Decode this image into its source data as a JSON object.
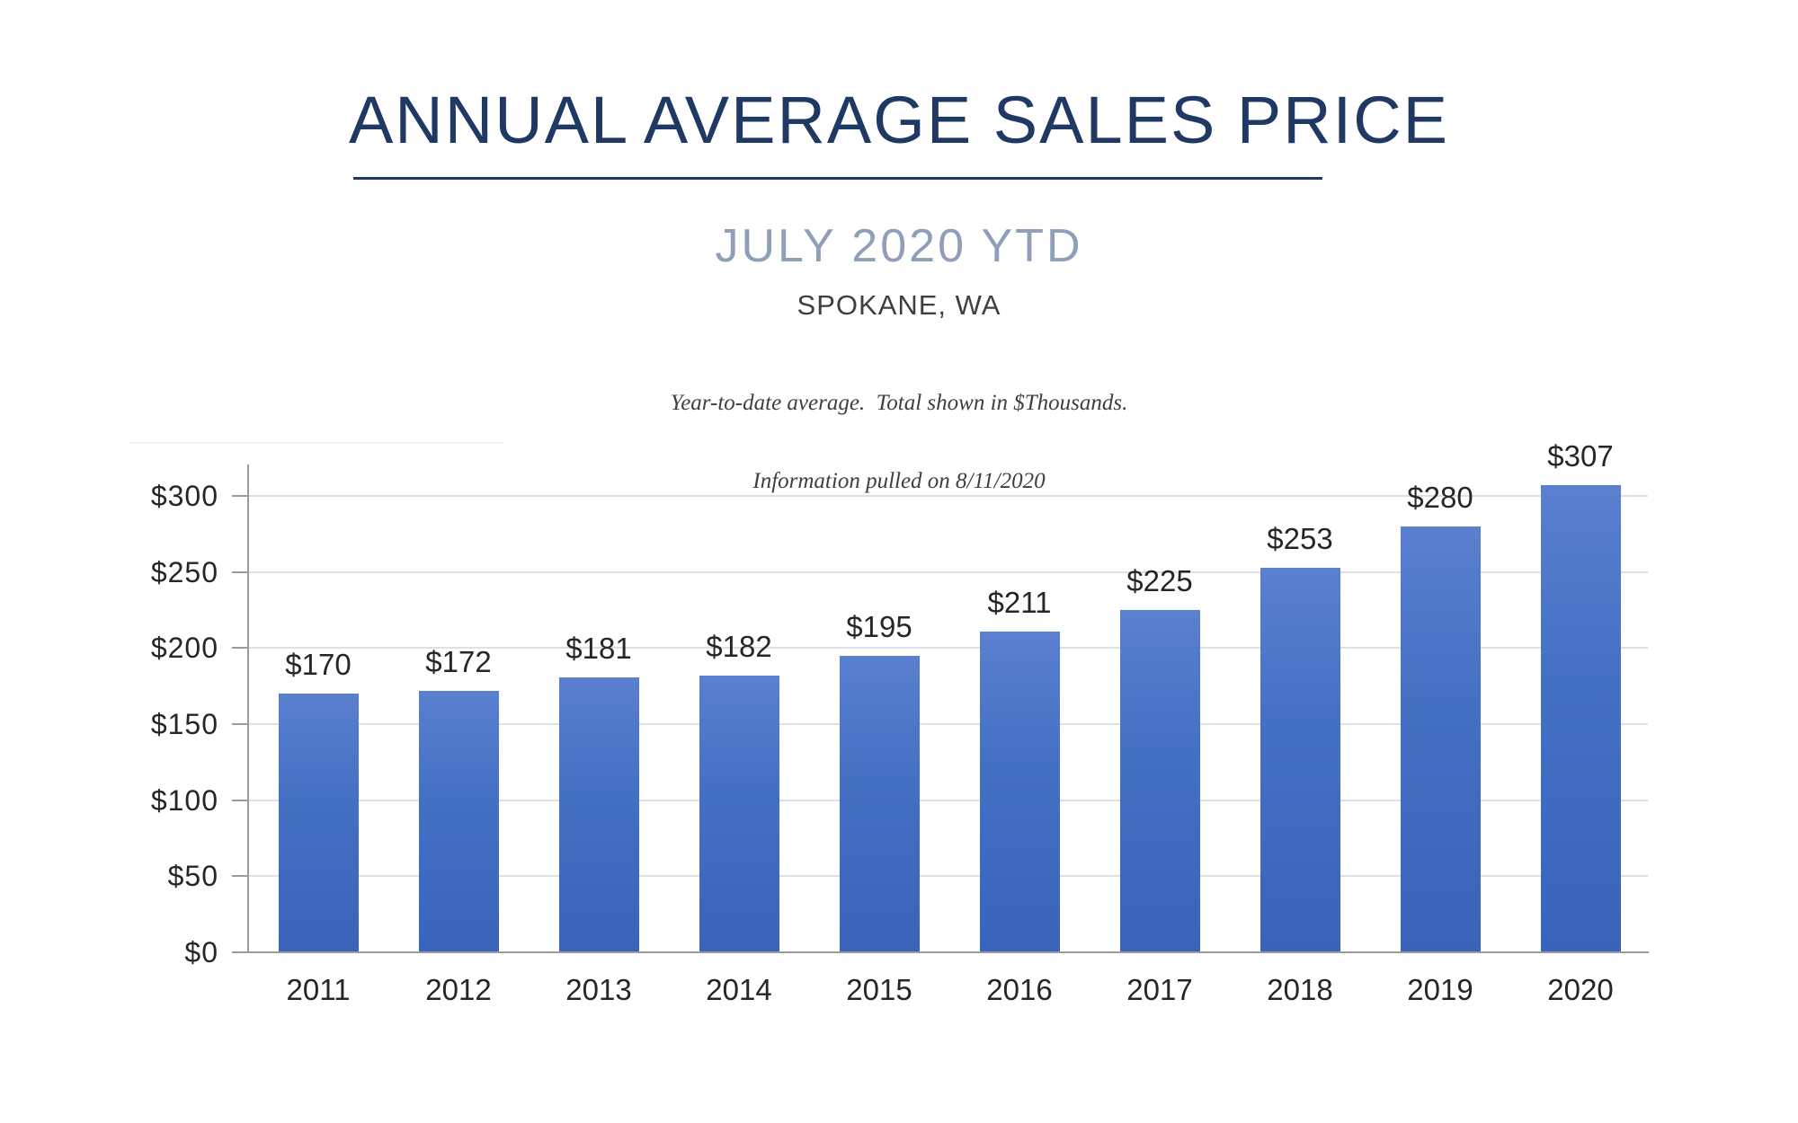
{
  "header": {
    "title": "ANNUAL AVERAGE SALES PRICE",
    "subtitle": "JULY 2020 YTD",
    "location": "SPOKANE, WA",
    "note_line1": "Year-to-date average.  Total shown in $Thousands.",
    "note_line2": "Information pulled on 8/11/2020"
  },
  "colors": {
    "title_navy": "#1F3864",
    "subtitle_blue_gray": "#8F9EB9",
    "bar_blue": "#4470C4",
    "bar_blue_light": "#5A80CE",
    "bar_blue_dark": "#3A63BA",
    "gridline": "#DDE0E6",
    "axis_gray": "#9B9B9B",
    "text_dark": "#262626"
  },
  "chart_data": {
    "type": "bar",
    "title": "ANNUAL AVERAGE SALES PRICE",
    "subtitle": "JULY 2020 YTD",
    "location": "SPOKANE, WA",
    "notes": [
      "Year-to-date average.  Total shown in $Thousands.",
      "Information pulled on 8/11/2020"
    ],
    "categories": [
      "2011",
      "2012",
      "2013",
      "2014",
      "2015",
      "2016",
      "2017",
      "2018",
      "2019",
      "2020"
    ],
    "values": [
      170,
      172,
      181,
      182,
      195,
      211,
      225,
      253,
      280,
      307
    ],
    "data_labels": [
      "$170",
      "$172",
      "$181",
      "$182",
      "$195",
      "$211",
      "$225",
      "$253",
      "$280",
      "$307"
    ],
    "y_ticks": [
      {
        "value": 0,
        "label": "$0"
      },
      {
        "value": 50,
        "label": "$50"
      },
      {
        "value": 100,
        "label": "$100"
      },
      {
        "value": 150,
        "label": "$150"
      },
      {
        "value": 200,
        "label": "$200"
      },
      {
        "value": 250,
        "label": "$250"
      },
      {
        "value": 300,
        "label": "$300"
      }
    ],
    "ylim": [
      0,
      320
    ],
    "grid": true,
    "legend": "none",
    "units": "$Thousands",
    "xlabel": "",
    "ylabel": ""
  }
}
